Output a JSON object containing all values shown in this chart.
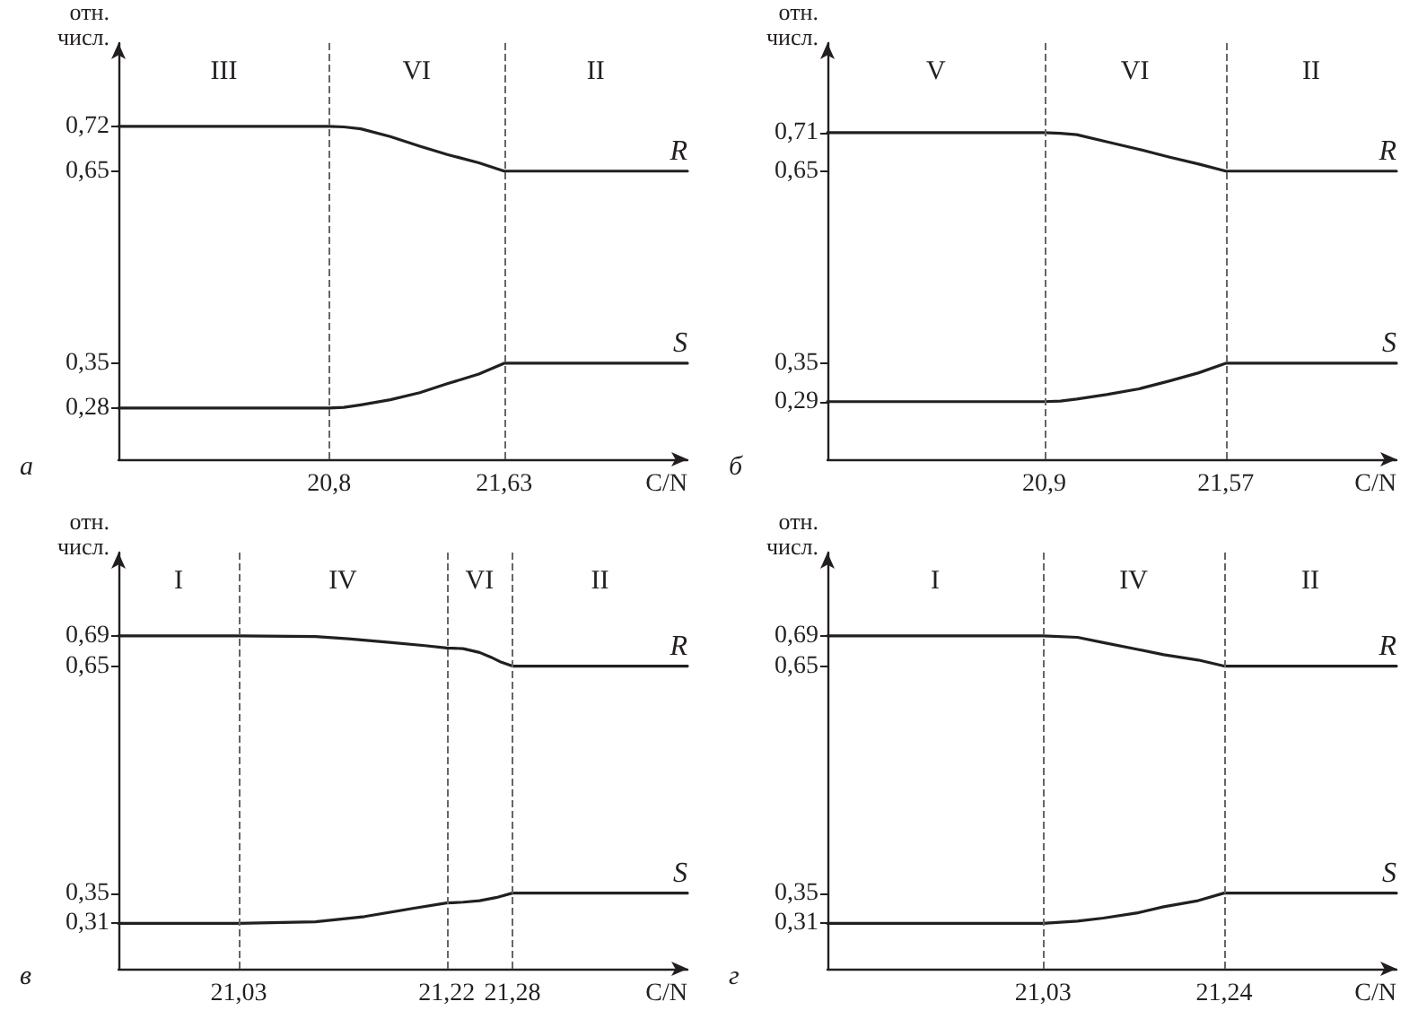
{
  "chart_data": [
    {
      "type": "line",
      "title": "а",
      "xlabel": "C/N",
      "ylabel": "отн. числ.",
      "xlim": [
        19.8,
        22.5
      ],
      "xticks": [
        {
          "value": 20.8,
          "label": "20,8"
        },
        {
          "value": 21.63,
          "label": "21,63"
        }
      ],
      "ylim": [
        0.2,
        0.85
      ],
      "yticks": [
        {
          "value": 0.28,
          "label": "0,28"
        },
        {
          "value": 0.35,
          "label": "0,35"
        },
        {
          "value": 0.65,
          "label": "0,65"
        },
        {
          "value": 0.72,
          "label": "0,72"
        }
      ],
      "marker": "none",
      "line_style": "solid",
      "series": [
        {
          "name": "R",
          "color": "#231f20",
          "x": [
            19.8,
            20.8,
            20.87,
            20.95,
            21.09,
            21.23,
            21.36,
            21.51,
            21.63,
            22.5
          ],
          "values": [
            0.72,
            0.72,
            0.719,
            0.716,
            0.704,
            0.689,
            0.676,
            0.663,
            0.65,
            0.65
          ]
        },
        {
          "name": "S",
          "color": "#231f20",
          "x": [
            19.8,
            20.8,
            20.87,
            20.95,
            21.09,
            21.23,
            21.36,
            21.51,
            21.63,
            22.5
          ],
          "values": [
            0.28,
            0.28,
            0.281,
            0.285,
            0.293,
            0.304,
            0.318,
            0.333,
            0.35,
            0.35
          ]
        }
      ],
      "ref_lines": [
        {
          "axis": "x",
          "value": 20.8,
          "color": "#666666",
          "line_style": "dashed"
        },
        {
          "axis": "x",
          "value": 21.63,
          "color": "#666666",
          "line_style": "dashed"
        }
      ],
      "annotations": [
        "III",
        "VI",
        "II"
      ]
    },
    {
      "type": "line",
      "title": "б",
      "xlabel": "C/N",
      "ylabel": "отн. числ.",
      "xlim": [
        20.1,
        22.2
      ],
      "xticks": [
        {
          "value": 20.9,
          "label": "20,9"
        },
        {
          "value": 21.57,
          "label": "21,57"
        }
      ],
      "ylim": [
        0.2,
        0.85
      ],
      "yticks": [
        {
          "value": 0.29,
          "label": "0,29"
        },
        {
          "value": 0.35,
          "label": "0,35"
        },
        {
          "value": 0.65,
          "label": "0,65"
        },
        {
          "value": 0.71,
          "label": "0,71"
        }
      ],
      "marker": "none",
      "line_style": "solid",
      "series": [
        {
          "name": "R",
          "color": "#231f20",
          "x": [
            20.1,
            20.9,
            20.96,
            21.02,
            21.13,
            21.25,
            21.36,
            21.47,
            21.57,
            22.2
          ],
          "values": [
            0.71,
            0.71,
            0.709,
            0.707,
            0.696,
            0.684,
            0.672,
            0.661,
            0.65,
            0.65
          ]
        },
        {
          "name": "S",
          "color": "#231f20",
          "x": [
            20.1,
            20.9,
            20.96,
            21.02,
            21.13,
            21.25,
            21.36,
            21.47,
            21.57,
            22.2
          ],
          "values": [
            0.29,
            0.29,
            0.291,
            0.294,
            0.301,
            0.31,
            0.322,
            0.335,
            0.35,
            0.35
          ]
        }
      ],
      "ref_lines": [
        {
          "axis": "x",
          "value": 20.9,
          "color": "#666666",
          "line_style": "dashed"
        },
        {
          "axis": "x",
          "value": 21.57,
          "color": "#666666",
          "line_style": "dashed"
        }
      ],
      "annotations": [
        "V",
        "VI",
        "II"
      ]
    },
    {
      "type": "line",
      "title": "в",
      "xlabel": "C/N",
      "ylabel": "отн. числ.",
      "xlim": [
        20.92,
        21.44
      ],
      "xticks": [
        {
          "value": 21.03,
          "label": "21,03"
        },
        {
          "value": 21.22,
          "label": "21,22"
        },
        {
          "value": 21.28,
          "label": "21,28"
        }
      ],
      "ylim": [
        0.25,
        0.8
      ],
      "yticks": [
        {
          "value": 0.31,
          "label": "0,31"
        },
        {
          "value": 0.35,
          "label": "0,35"
        },
        {
          "value": 0.65,
          "label": "0,65"
        },
        {
          "value": 0.69,
          "label": "0,69"
        }
      ],
      "marker": "none",
      "line_style": "solid",
      "series": [
        {
          "name": "R",
          "color": "#231f20",
          "x": [
            20.92,
            21.03,
            21.1,
            21.13,
            21.17,
            21.2,
            21.22,
            21.235,
            21.25,
            21.26,
            21.27,
            21.28,
            21.44
          ],
          "values": [
            0.69,
            0.69,
            0.689,
            0.686,
            0.681,
            0.677,
            0.674,
            0.673,
            0.668,
            0.662,
            0.655,
            0.65,
            0.65
          ]
        },
        {
          "name": "S",
          "color": "#231f20",
          "x": [
            20.92,
            21.03,
            21.1,
            21.145,
            21.19,
            21.22,
            21.235,
            21.25,
            21.265,
            21.28,
            21.44
          ],
          "values": [
            0.31,
            0.31,
            0.312,
            0.319,
            0.33,
            0.337,
            0.338,
            0.34,
            0.344,
            0.35,
            0.35
          ]
        }
      ],
      "ref_lines": [
        {
          "axis": "x",
          "value": 21.03,
          "color": "#666666",
          "line_style": "dashed"
        },
        {
          "axis": "x",
          "value": 21.22,
          "color": "#666666",
          "line_style": "dashed"
        },
        {
          "axis": "x",
          "value": 21.28,
          "color": "#666666",
          "line_style": "dashed"
        }
      ],
      "annotations": [
        "I",
        "IV",
        "VI",
        "II"
      ]
    },
    {
      "type": "line",
      "title": "г",
      "xlabel": "C/N",
      "ylabel": "отн. числ.",
      "xlim": [
        20.78,
        21.44
      ],
      "xticks": [
        {
          "value": 21.03,
          "label": "21,03"
        },
        {
          "value": 21.24,
          "label": "21,24"
        }
      ],
      "ylim": [
        0.25,
        0.8
      ],
      "yticks": [
        {
          "value": 0.31,
          "label": "0,31"
        },
        {
          "value": 0.35,
          "label": "0,35"
        },
        {
          "value": 0.65,
          "label": "0,65"
        },
        {
          "value": 0.69,
          "label": "0,69"
        }
      ],
      "marker": "none",
      "line_style": "solid",
      "series": [
        {
          "name": "R",
          "color": "#231f20",
          "x": [
            20.78,
            21.03,
            21.07,
            21.1,
            21.14,
            21.17,
            21.21,
            21.24,
            21.44
          ],
          "values": [
            0.69,
            0.69,
            0.688,
            0.681,
            0.672,
            0.665,
            0.658,
            0.65,
            0.65
          ]
        },
        {
          "name": "S",
          "color": "#231f20",
          "x": [
            20.78,
            21.03,
            21.07,
            21.1,
            21.14,
            21.17,
            21.21,
            21.24,
            21.44
          ],
          "values": [
            0.31,
            0.31,
            0.313,
            0.317,
            0.324,
            0.332,
            0.34,
            0.35,
            0.35
          ]
        }
      ],
      "ref_lines": [
        {
          "axis": "x",
          "value": 21.03,
          "color": "#666666",
          "line_style": "dashed"
        },
        {
          "axis": "x",
          "value": 21.24,
          "color": "#666666",
          "line_style": "dashed"
        }
      ],
      "annotations": [
        "I",
        "IV",
        "II"
      ]
    }
  ]
}
